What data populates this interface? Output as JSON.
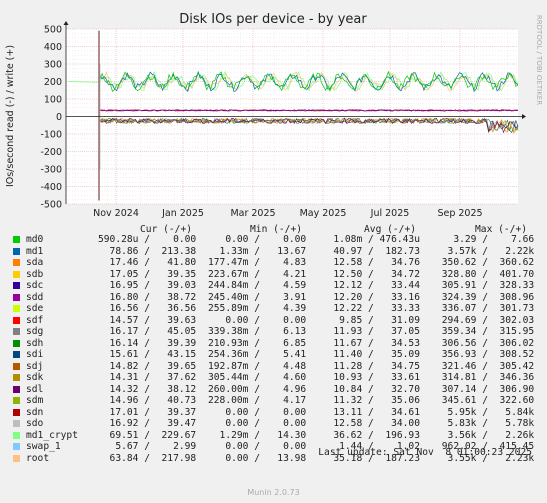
{
  "chart_data": {
    "type": "line",
    "title": "Disk IOs per device - by year",
    "ylabel": "IOs/second read (-) / write (+)",
    "side_label": "RRDTOOL / TOBI OETIKER",
    "ylim": [
      -500,
      500
    ],
    "yticks": [
      -500,
      -400,
      -300,
      -200,
      -100,
      0,
      100,
      200,
      300,
      400,
      500
    ],
    "xticks": [
      "Nov 2024",
      "Jan 2025",
      "Mar 2025",
      "May 2025",
      "Jul 2025",
      "Sep 2025"
    ],
    "grid": true,
    "series_summary": {
      "write_band_upper": 250,
      "write_band_lower": 140,
      "write_band_center": 200,
      "read_band_center": -25,
      "read_band_lower": -100,
      "low_write_line": 35,
      "spike_x": "late Oct 2024",
      "spike_max": 490,
      "spike_min": -480
    }
  },
  "legend": {
    "headers": {
      "cur": "Cur (-/+)",
      "min": "Min (-/+)",
      "avg": "Avg (-/+)",
      "max": "Max (-/+)"
    },
    "rows": [
      {
        "name": "md0",
        "color": "#00cc00",
        "cur": [
          "590.28u",
          "0.00"
        ],
        "min": [
          "0.00",
          "0.00"
        ],
        "avg": [
          "1.08m",
          "476.43u"
        ],
        "max": [
          "3.29",
          "7.66"
        ]
      },
      {
        "name": "md1",
        "color": "#0066b3",
        "cur": [
          "78.86",
          "213.38"
        ],
        "min": [
          "1.33m",
          "13.67"
        ],
        "avg": [
          "40.97",
          "182.73"
        ],
        "max": [
          "3.57k",
          "2.22k"
        ]
      },
      {
        "name": "sda",
        "color": "#ff8000",
        "cur": [
          "17.46",
          "41.80"
        ],
        "min": [
          "177.47m",
          "4.83"
        ],
        "avg": [
          "12.58",
          "34.76"
        ],
        "max": [
          "350.62",
          "360.62"
        ]
      },
      {
        "name": "sdb",
        "color": "#ffcc00",
        "cur": [
          "17.05",
          "39.35"
        ],
        "min": [
          "223.67m",
          "4.21"
        ],
        "avg": [
          "12.50",
          "34.72"
        ],
        "max": [
          "328.80",
          "401.70"
        ]
      },
      {
        "name": "sdc",
        "color": "#330099",
        "cur": [
          "16.95",
          "39.03"
        ],
        "min": [
          "244.84m",
          "4.59"
        ],
        "avg": [
          "12.12",
          "33.44"
        ],
        "max": [
          "305.91",
          "328.33"
        ]
      },
      {
        "name": "sdd",
        "color": "#990099",
        "cur": [
          "16.80",
          "38.72"
        ],
        "min": [
          "245.40m",
          "3.91"
        ],
        "avg": [
          "12.20",
          "33.16"
        ],
        "max": [
          "324.39",
          "308.96"
        ]
      },
      {
        "name": "sde",
        "color": "#ccff00",
        "cur": [
          "16.56",
          "36.56"
        ],
        "min": [
          "255.89m",
          "4.39"
        ],
        "avg": [
          "12.22",
          "33.33"
        ],
        "max": [
          "336.07",
          "301.73"
        ]
      },
      {
        "name": "sdf",
        "color": "#ff0000",
        "cur": [
          "14.57",
          "39.63"
        ],
        "min": [
          "0.00",
          "0.00"
        ],
        "avg": [
          "9.85",
          "31.09"
        ],
        "max": [
          "294.69",
          "302.03"
        ]
      },
      {
        "name": "sdg",
        "color": "#808080",
        "cur": [
          "16.17",
          "45.05"
        ],
        "min": [
          "339.38m",
          "6.13"
        ],
        "avg": [
          "11.93",
          "37.05"
        ],
        "max": [
          "359.34",
          "315.95"
        ]
      },
      {
        "name": "sdh",
        "color": "#008f00",
        "cur": [
          "16.14",
          "39.39"
        ],
        "min": [
          "210.93m",
          "6.85"
        ],
        "avg": [
          "11.67",
          "34.53"
        ],
        "max": [
          "306.56",
          "306.02"
        ]
      },
      {
        "name": "sdi",
        "color": "#00487d",
        "cur": [
          "15.61",
          "43.15"
        ],
        "min": [
          "254.36m",
          "5.41"
        ],
        "avg": [
          "11.40",
          "35.09"
        ],
        "max": [
          "356.93",
          "308.52"
        ]
      },
      {
        "name": "sdj",
        "color": "#b35a00",
        "cur": [
          "14.82",
          "39.65"
        ],
        "min": [
          "192.87m",
          "4.48"
        ],
        "avg": [
          "11.28",
          "34.75"
        ],
        "max": [
          "321.46",
          "305.42"
        ]
      },
      {
        "name": "sdk",
        "color": "#b38f00",
        "cur": [
          "14.31",
          "37.62"
        ],
        "min": [
          "305.44m",
          "4.60"
        ],
        "avg": [
          "10.93",
          "33.61"
        ],
        "max": [
          "314.81",
          "346.36"
        ]
      },
      {
        "name": "sdl",
        "color": "#6b006b",
        "cur": [
          "14.32",
          "38.12"
        ],
        "min": [
          "260.00m",
          "4.96"
        ],
        "avg": [
          "10.84",
          "32.70"
        ],
        "max": [
          "307.14",
          "306.90"
        ]
      },
      {
        "name": "sdm",
        "color": "#8fb300",
        "cur": [
          "14.96",
          "40.73"
        ],
        "min": [
          "228.00m",
          "4.17"
        ],
        "avg": [
          "11.32",
          "35.06"
        ],
        "max": [
          "345.61",
          "322.60"
        ]
      },
      {
        "name": "sdn",
        "color": "#b30000",
        "cur": [
          "17.01",
          "39.37"
        ],
        "min": [
          "0.00",
          "0.00"
        ],
        "avg": [
          "13.11",
          "34.61"
        ],
        "max": [
          "5.95k",
          "5.84k"
        ]
      },
      {
        "name": "sdo",
        "color": "#bebebe",
        "cur": [
          "16.92",
          "39.47"
        ],
        "min": [
          "0.00",
          "0.00"
        ],
        "avg": [
          "12.58",
          "34.00"
        ],
        "max": [
          "5.83k",
          "5.78k"
        ]
      },
      {
        "name": "md1_crypt",
        "color": "#80ff80",
        "cur": [
          "69.51",
          "229.67"
        ],
        "min": [
          "1.29m",
          "14.30"
        ],
        "avg": [
          "36.62",
          "196.93"
        ],
        "max": [
          "3.56k",
          "2.26k"
        ]
      },
      {
        "name": "swap_1",
        "color": "#80c9ff",
        "cur": [
          "5.67",
          "2.99"
        ],
        "min": [
          "0.00",
          "0.00"
        ],
        "avg": [
          "1.44",
          "1.02"
        ],
        "max": [
          "962.02",
          "415.45"
        ]
      },
      {
        "name": "root",
        "color": "#ffc080",
        "cur": [
          "63.84",
          "217.98"
        ],
        "min": [
          "0.00",
          "13.98"
        ],
        "avg": [
          "35.18",
          "187.23"
        ],
        "max": [
          "3.55k",
          "2.23k"
        ]
      }
    ]
  },
  "last_update": "Last update: Sat Nov  8 01:00:23 2025",
  "footer": "Munin 2.0.73"
}
